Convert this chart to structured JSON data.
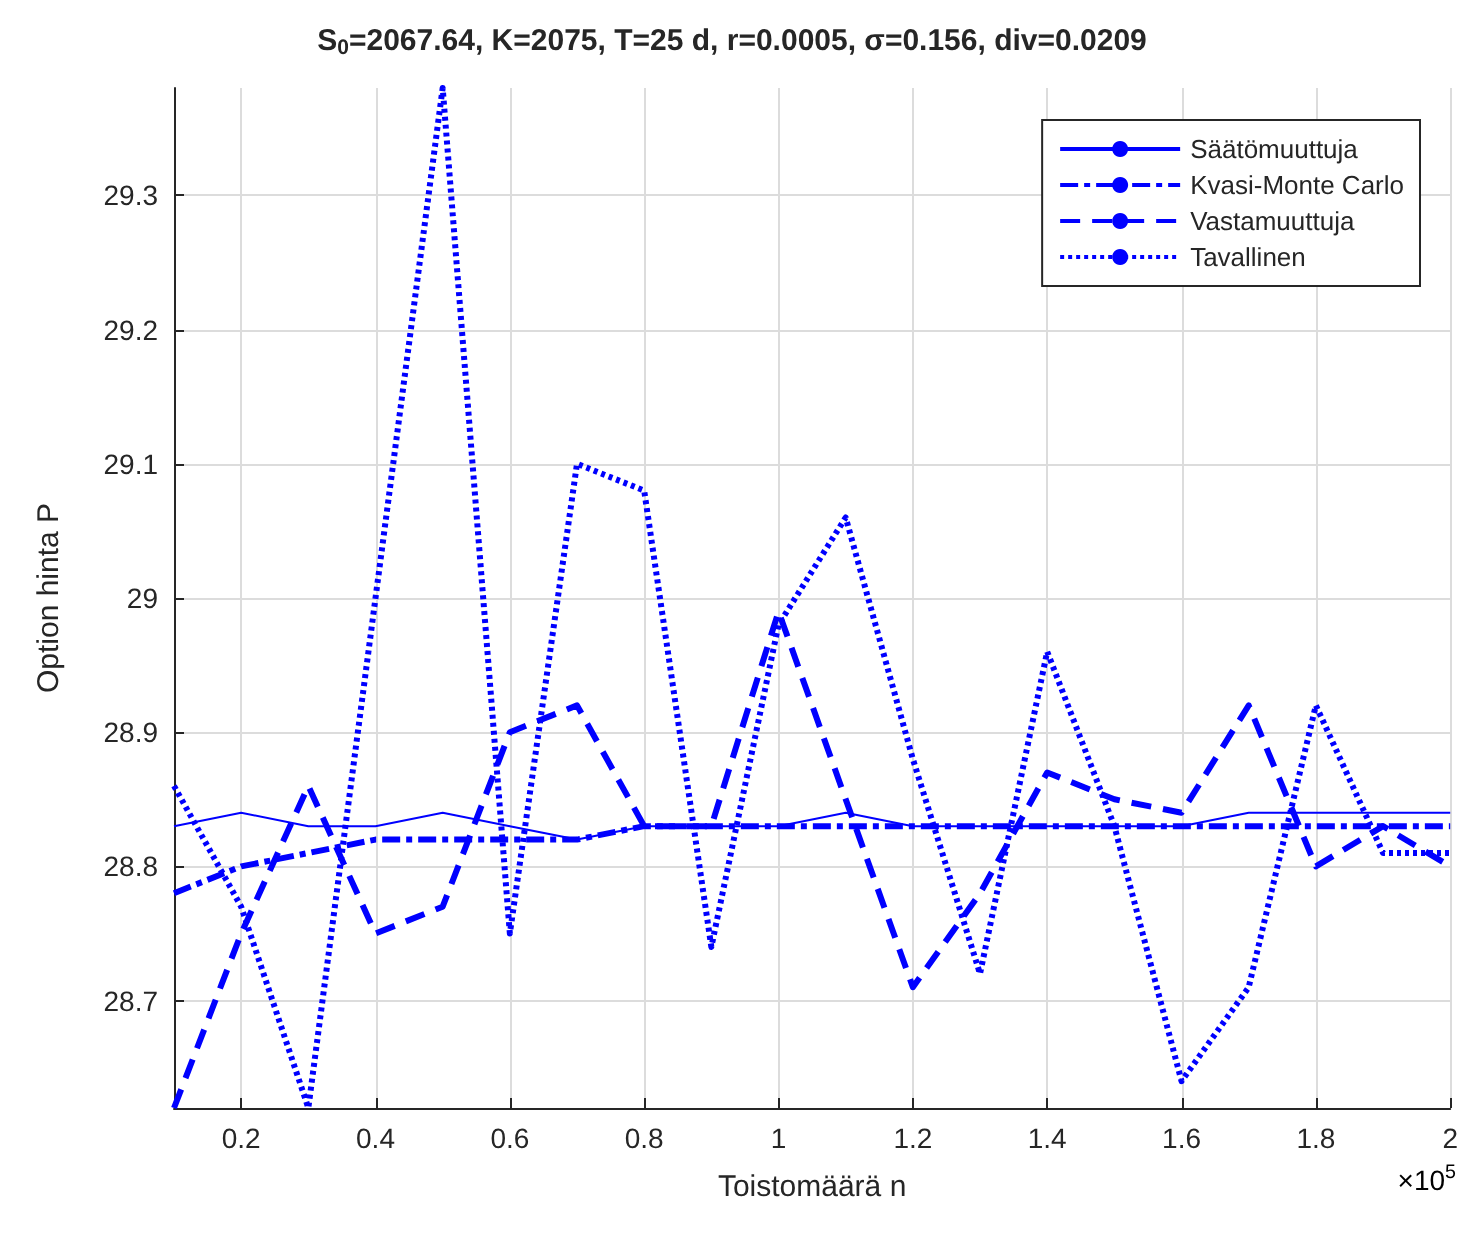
{
  "chart_data": {
    "type": "line",
    "title": "S$_{0}$=2067.64, K=2075, T=25 d, r=0.0005, σ=0.156, div=0.0209",
    "xlabel": "Toistomäärä n",
    "ylabel": "Option hinta P",
    "annotations": [
      "×10$^{5}$"
    ],
    "x": [
      0.1,
      0.2,
      0.3,
      0.4,
      0.5,
      0.6,
      0.7,
      0.8,
      0.9,
      1.0,
      1.1,
      1.2,
      1.3,
      1.4,
      1.5,
      1.6,
      1.7,
      1.8,
      1.9,
      2.0
    ],
    "series": [
      {
        "name": "Säätömuuttuja",
        "color": "#0000ff",
        "line_style": "solid",
        "values": [
          28.83,
          28.84,
          28.83,
          28.83,
          28.84,
          28.83,
          28.82,
          28.83,
          28.83,
          28.83,
          28.84,
          28.83,
          28.83,
          28.83,
          28.83,
          28.83,
          28.84,
          28.84,
          28.84,
          28.84
        ]
      },
      {
        "name": "Kvasi-Monte Carlo",
        "color": "#0000ff",
        "line_style": "dashdot",
        "values": [
          28.78,
          28.8,
          28.81,
          28.82,
          28.82,
          28.82,
          28.82,
          28.83,
          28.83,
          28.83,
          28.83,
          28.83,
          28.83,
          28.83,
          28.83,
          28.83,
          28.83,
          28.83,
          28.83,
          28.83
        ]
      },
      {
        "name": "Vastamuuttuja",
        "color": "#0000ff",
        "line_style": "dashed",
        "values": [
          28.62,
          28.75,
          28.86,
          28.75,
          28.77,
          28.9,
          28.92,
          28.83,
          28.83,
          28.99,
          28.85,
          28.71,
          28.78,
          28.87,
          28.85,
          28.84,
          28.92,
          28.8,
          28.83,
          28.8
        ]
      },
      {
        "name": "Tavallinen",
        "color": "#0000ff",
        "line_style": "dotted",
        "values": [
          28.86,
          28.77,
          28.62,
          29.0,
          29.38,
          28.75,
          29.1,
          29.08,
          28.74,
          28.98,
          29.06,
          28.88,
          28.72,
          28.96,
          28.83,
          28.64,
          28.71,
          28.92,
          28.81,
          28.81
        ]
      }
    ],
    "xlim": [
      0.1,
      2
    ],
    "xticks": [
      0.2,
      0.4,
      0.6,
      0.8,
      1,
      1.2,
      1.4,
      1.6,
      1.8,
      2
    ],
    "ylim": [
      28.62,
      29.38
    ],
    "yticks": [
      28.7,
      28.8,
      28.9,
      29,
      29.1,
      29.2,
      29.3
    ],
    "grid": true,
    "legend": "top right",
    "marker": "none"
  }
}
